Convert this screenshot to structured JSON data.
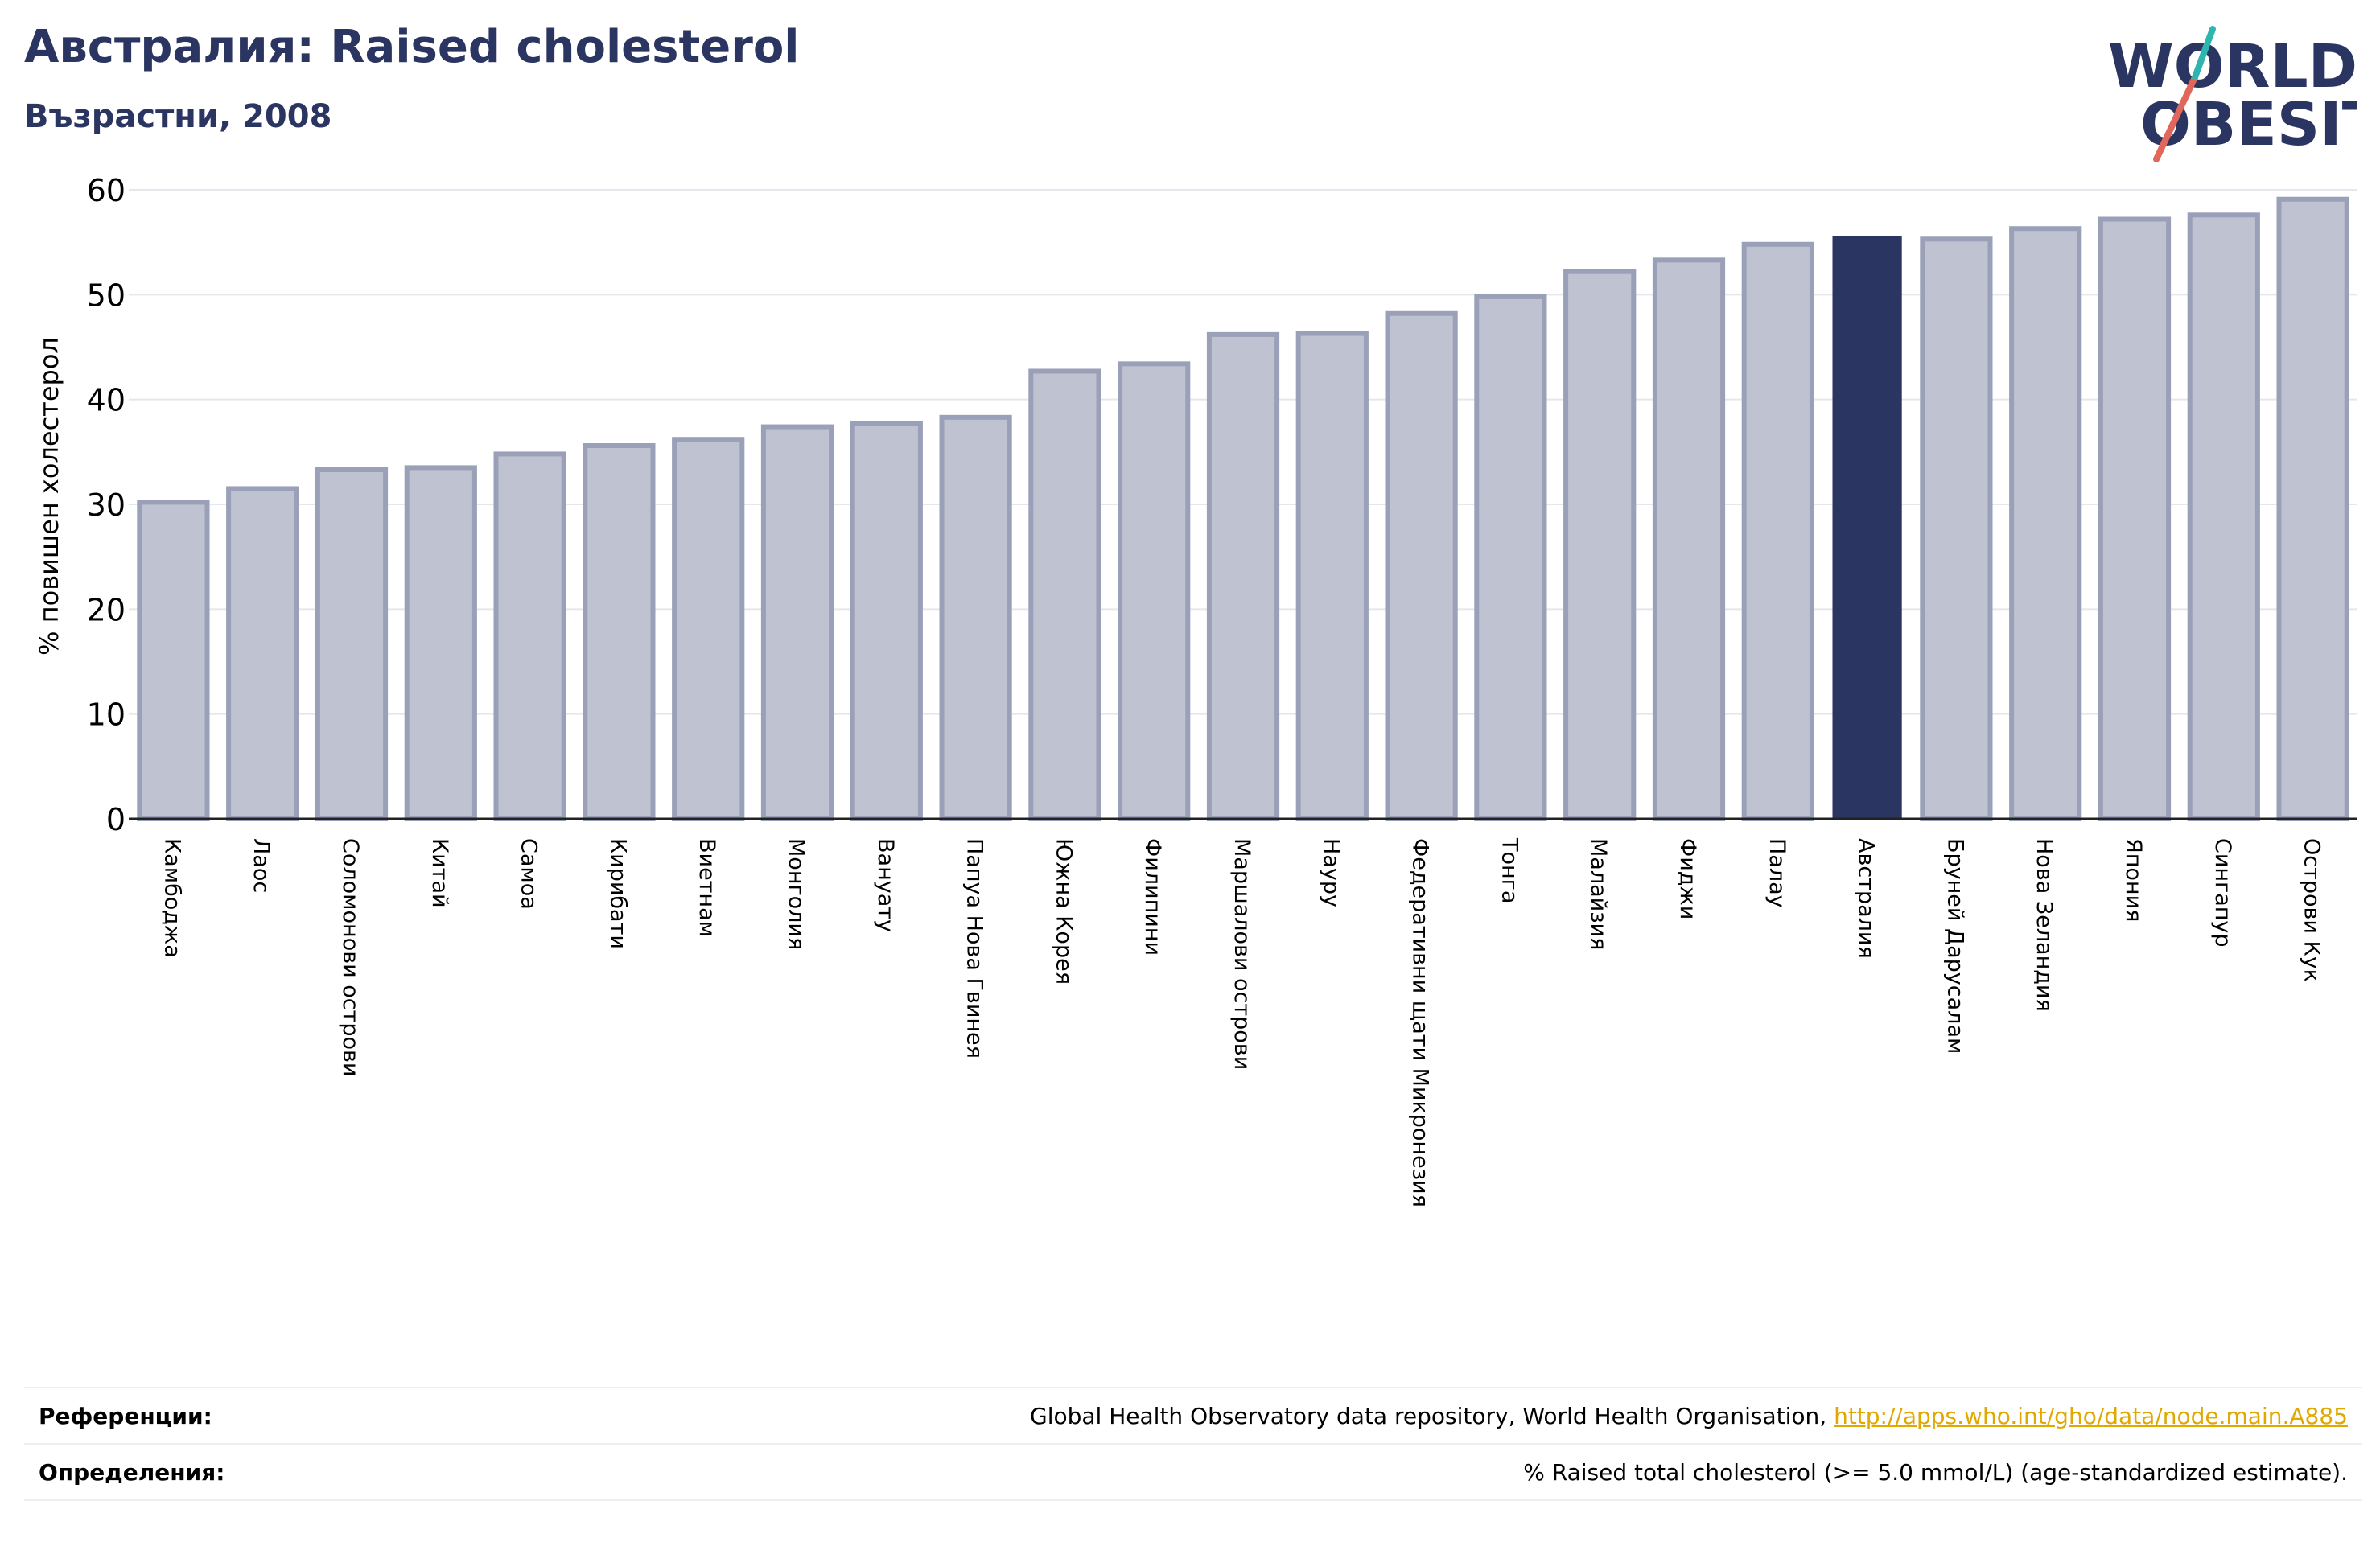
{
  "header": {
    "title": "Австралия: Raised cholesterol",
    "subtitle": "Възрастни, 2008"
  },
  "logo": {
    "line1": "WORLD",
    "line2": "OBESITY"
  },
  "colors": {
    "bar": "#bfc2d0",
    "bar_border": "#9aa0b8",
    "highlight": "#2b3561",
    "grid": "#e6e7ec",
    "text": "#2b3561"
  },
  "chart_data": {
    "type": "bar",
    "ylabel": "% повишен холестерол",
    "ylim": [
      0,
      60
    ],
    "yticks": [
      0,
      10,
      20,
      30,
      40,
      50,
      60
    ],
    "grid": true,
    "highlight": "Австралия",
    "categories": [
      "Камбоджа",
      "Лаос",
      "Соломонови острови",
      "Китай",
      "Самоа",
      "Кирибати",
      "Виетнам",
      "Монголия",
      "Вануату",
      "Папуа Нова Гвинея",
      "Южна Корея",
      "Филипини",
      "Маршалови острови",
      "Науру",
      "Федеративни щати Микронезия",
      "Тонга",
      "Малайзия",
      "Фиджи",
      "Палау",
      "Австралия",
      "Бруней Дарусалам",
      "Нова Зеландия",
      "Япония",
      "Сингапур",
      "Острови Кук"
    ],
    "values": [
      30.2,
      31.5,
      33.3,
      33.5,
      34.8,
      35.6,
      36.2,
      37.4,
      37.7,
      38.3,
      42.7,
      43.4,
      46.2,
      46.3,
      48.2,
      49.8,
      52.2,
      53.3,
      54.8,
      55.5,
      55.3,
      56.3,
      57.2,
      57.6,
      59.1
    ]
  },
  "footer": {
    "references_label": "Референции:",
    "references_text": "Global Health Observatory data repository, World Health Organisation,",
    "references_link": "http://apps.who.int/gho/data/node.main.A885",
    "definitions_label": "Определения:",
    "definitions_text": "% Raised total cholesterol (>= 5.0 mmol/L) (age-standardized estimate)."
  }
}
